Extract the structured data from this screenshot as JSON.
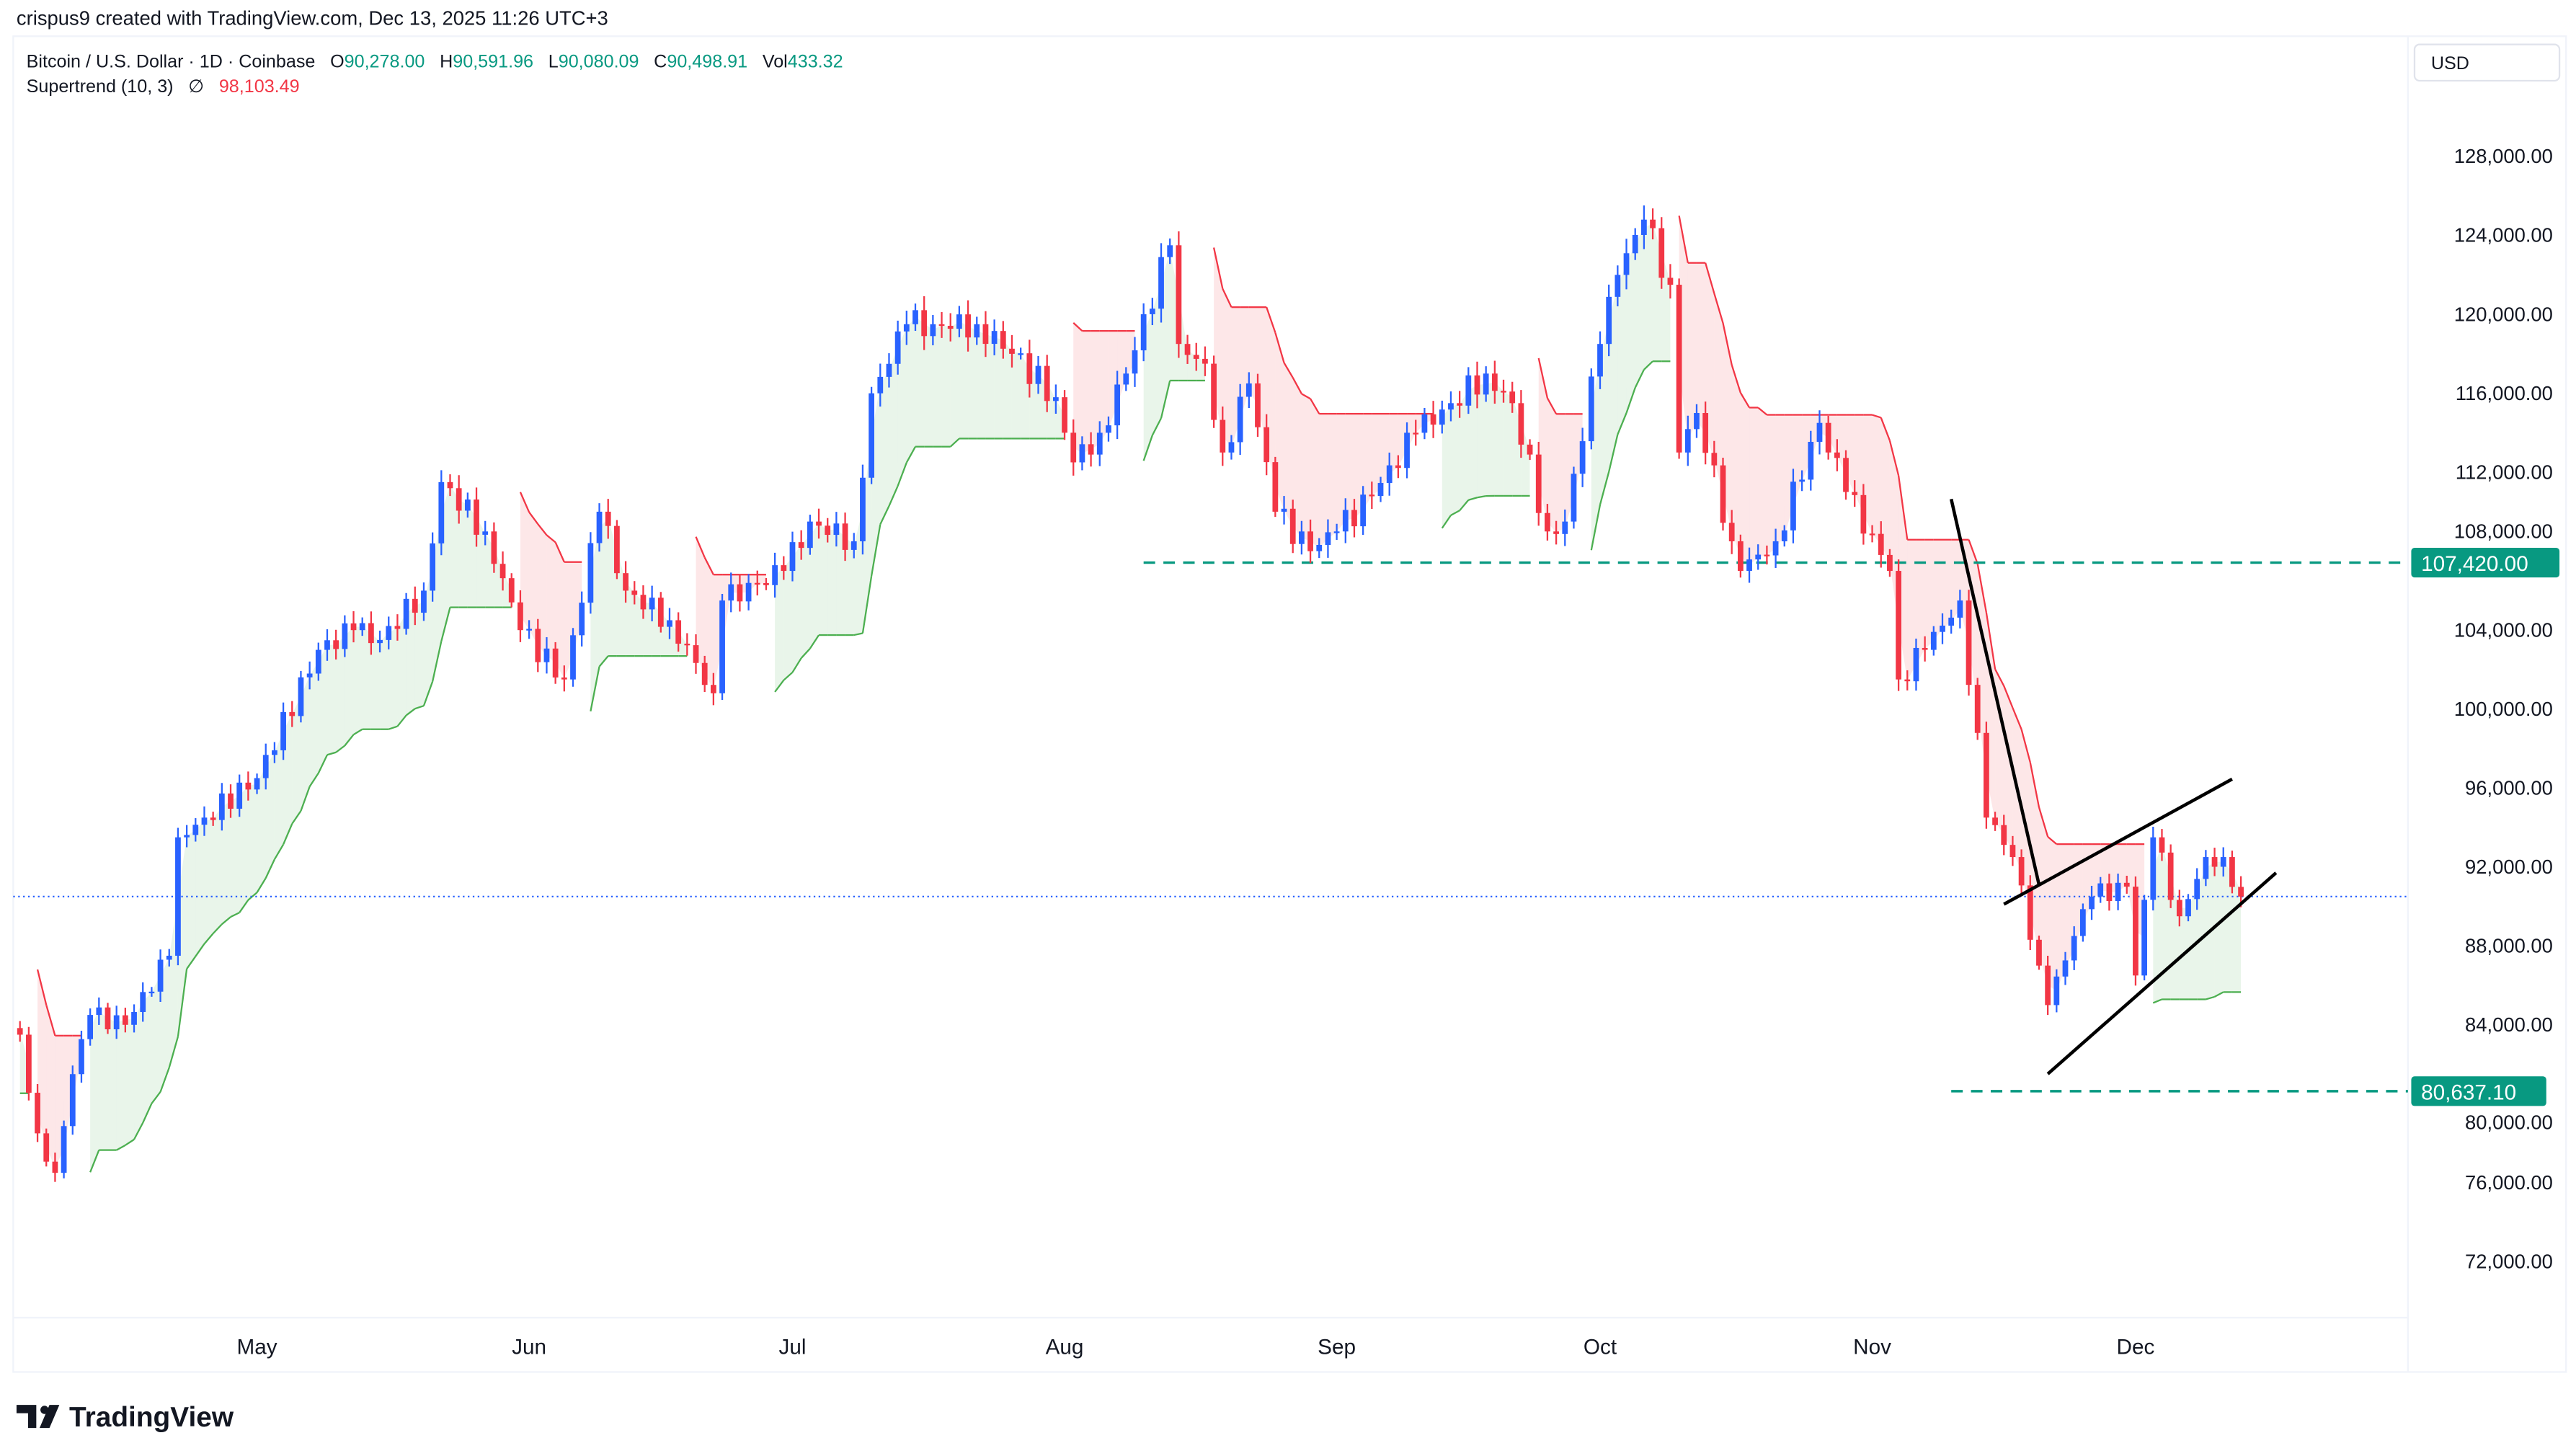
{
  "header": {
    "credit": "crispus9 created with TradingView.com, Dec 13, 2025 11:26 UTC+3",
    "symbol": "Bitcoin / U.S. Dollar · 1D · Coinbase",
    "o_label": "O",
    "o": "90,278.00",
    "h_label": "H",
    "h": "90,591.96",
    "l_label": "L",
    "l": "90,080.09",
    "c_label": "C",
    "c": "90,498.91",
    "vol_label": "Vol",
    "vol": "433.32",
    "indicator": "Supertrend (10, 3)",
    "indicator_symbol": "∅",
    "indicator_value": "98,103.49"
  },
  "currency": "USD",
  "logo_text": "TradingView",
  "colors": {
    "up": "#2962ff",
    "down": "#f23645",
    "st_up": "#4caf50",
    "st_down": "#f23645",
    "level": "#089981",
    "last_price": "#2962ff"
  },
  "chart_data": {
    "type": "candlestick",
    "price_ticks": [
      "72,000.00",
      "76,000.00",
      "80,000.00",
      "84,000.00",
      "88,000.00",
      "92,000.00",
      "96,000.00",
      "100,000.00",
      "104,000.00",
      "108,000.00",
      "112,000.00",
      "116,000.00",
      "120,000.00",
      "124,000.00",
      "128,000.00"
    ],
    "time_ticks": [
      [
        "May",
        "2025-05-01"
      ],
      [
        "Jun",
        "2025-06-01"
      ],
      [
        "Jul",
        "2025-07-01"
      ],
      [
        "Aug",
        "2025-08-01"
      ],
      [
        "Sep",
        "2025-09-01"
      ],
      [
        "Oct",
        "2025-10-01"
      ],
      [
        "Nov",
        "2025-11-01"
      ],
      [
        "Dec",
        "2025-12-01"
      ]
    ],
    "ylim": [
      70000,
      130500
    ],
    "xlim": [
      "2025-04-04",
      "2025-12-13"
    ],
    "approx_closes": [
      [
        "2025-04-04",
        83500
      ],
      [
        "2025-04-06",
        78500
      ],
      [
        "2025-04-08",
        76500
      ],
      [
        "2025-04-10",
        81500
      ],
      [
        "2025-04-12",
        84500
      ],
      [
        "2025-04-16",
        84000
      ],
      [
        "2025-04-21",
        87500
      ],
      [
        "2025-04-22",
        93500
      ],
      [
        "2025-04-25",
        94500
      ],
      [
        "2025-05-01",
        96500
      ],
      [
        "2025-05-08",
        103000
      ],
      [
        "2025-05-12",
        104000
      ],
      [
        "2025-05-15",
        103500
      ],
      [
        "2025-05-20",
        106000
      ],
      [
        "2025-05-22",
        111500
      ],
      [
        "2025-05-27",
        109000
      ],
      [
        "2025-05-31",
        104000
      ],
      [
        "2025-06-05",
        101500
      ],
      [
        "2025-06-09",
        110000
      ],
      [
        "2025-06-12",
        106000
      ],
      [
        "2025-06-17",
        104500
      ],
      [
        "2025-06-22",
        100800
      ],
      [
        "2025-06-23",
        105500
      ],
      [
        "2025-06-30",
        107000
      ],
      [
        "2025-07-03",
        109500
      ],
      [
        "2025-07-08",
        108500
      ],
      [
        "2025-07-10",
        116000
      ],
      [
        "2025-07-14",
        119500
      ],
      [
        "2025-07-17",
        119500
      ],
      [
        "2025-07-22",
        119500
      ],
      [
        "2025-07-26",
        118000
      ],
      [
        "2025-07-31",
        115800
      ],
      [
        "2025-08-02",
        112500
      ],
      [
        "2025-08-05",
        114000
      ],
      [
        "2025-08-08",
        117000
      ],
      [
        "2025-08-13",
        123500
      ],
      [
        "2025-08-14",
        118500
      ],
      [
        "2025-08-17",
        117500
      ],
      [
        "2025-08-19",
        113000
      ],
      [
        "2025-08-22",
        116500
      ],
      [
        "2025-08-25",
        110000
      ],
      [
        "2025-08-29",
        108000
      ],
      [
        "2025-09-01",
        109000
      ],
      [
        "2025-09-05",
        110800
      ],
      [
        "2025-09-10",
        114000
      ],
      [
        "2025-09-14",
        115500
      ],
      [
        "2025-09-18",
        117000
      ],
      [
        "2025-09-21",
        115500
      ],
      [
        "2025-09-25",
        109000
      ],
      [
        "2025-09-27",
        109500
      ],
      [
        "2025-10-01",
        118500
      ],
      [
        "2025-10-03",
        122000
      ],
      [
        "2025-10-06",
        124800
      ],
      [
        "2025-10-09",
        121500
      ],
      [
        "2025-10-10",
        113000
      ],
      [
        "2025-10-12",
        115000
      ],
      [
        "2025-10-16",
        108500
      ],
      [
        "2025-10-17",
        107000
      ],
      [
        "2025-10-21",
        108500
      ],
      [
        "2025-10-26",
        114500
      ],
      [
        "2025-10-29",
        111000
      ],
      [
        "2025-11-03",
        107000
      ],
      [
        "2025-11-04",
        101500
      ],
      [
        "2025-11-07",
        103000
      ],
      [
        "2025-11-11",
        105500
      ],
      [
        "2025-11-14",
        94500
      ],
      [
        "2025-11-17",
        92500
      ],
      [
        "2025-11-20",
        87000
      ],
      [
        "2025-11-21",
        85000
      ],
      [
        "2025-11-24",
        88500
      ],
      [
        "2025-11-26",
        90500
      ],
      [
        "2025-11-30",
        91000
      ],
      [
        "2025-12-01",
        86500
      ],
      [
        "2025-12-03",
        93500
      ],
      [
        "2025-12-06",
        89500
      ],
      [
        "2025-12-09",
        92500
      ],
      [
        "2025-12-11",
        92500
      ],
      [
        "2025-12-13",
        90499
      ]
    ],
    "supertrend": {
      "period": 10,
      "multiplier": 3,
      "last_value": 98103.49
    },
    "last_price": 90498.91,
    "levels": [
      {
        "price": 107420.0,
        "label": "107,420.00",
        "from": "2025-08-10"
      },
      {
        "price": 80637.1,
        "label": "80,637.10",
        "from": "2025-11-10"
      }
    ],
    "trendlines": [
      [
        [
          "2025-11-10",
          110640
        ],
        [
          "2025-11-20",
          91100
        ]
      ],
      [
        [
          "2025-11-16",
          90110
        ],
        [
          "2025-12-12",
          96450
        ]
      ],
      [
        [
          "2025-11-21",
          81510
        ],
        [
          "2025-12-17",
          91700
        ]
      ]
    ]
  }
}
